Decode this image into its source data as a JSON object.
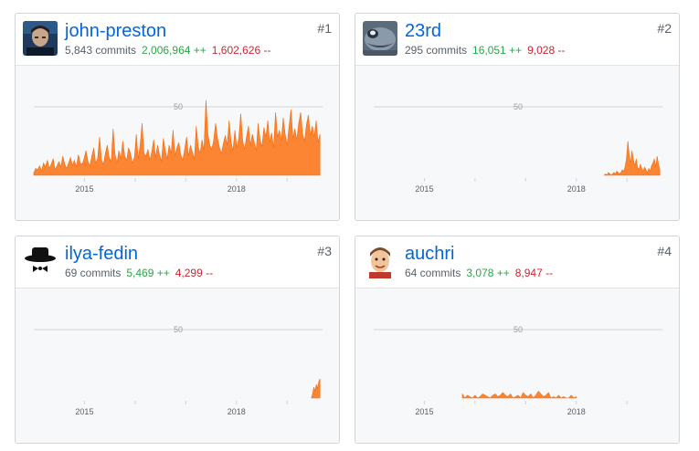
{
  "contributors": [
    {
      "rank": "#1",
      "login": "john-preston",
      "commits": "5,843 commits",
      "additions": "2,006,964 ++",
      "deletions": "1,602,626 --",
      "avatar_icon": "user-avatar-icon",
      "chart_data": {
        "type": "area",
        "ylim": [
          0,
          60
        ],
        "yticks": [
          "50"
        ],
        "xticks": [
          "2015",
          "2018"
        ],
        "x_start": 2014.0,
        "x_end": 2019.7,
        "x_tick_values": [
          2015,
          2018
        ],
        "minor_ticks": [
          2016,
          2017,
          2019
        ],
        "data_start": 2014.0,
        "data_end": 2019.65,
        "values": [
          2,
          5,
          4,
          7,
          3,
          9,
          6,
          11,
          5,
          8,
          12,
          4,
          7,
          10,
          6,
          14,
          8,
          5,
          9,
          13,
          7,
          11,
          6,
          15,
          9,
          8,
          12,
          18,
          10,
          7,
          14,
          20,
          9,
          12,
          28,
          11,
          8,
          16,
          22,
          13,
          10,
          34,
          15,
          9,
          18,
          12,
          25,
          14,
          11,
          20,
          16,
          9,
          13,
          30,
          12,
          22,
          38,
          16,
          14,
          19,
          11,
          17,
          26,
          13,
          22,
          15,
          10,
          27,
          18,
          12,
          22,
          16,
          33,
          14,
          20,
          24,
          15,
          11,
          19,
          28,
          14,
          22,
          17,
          12,
          36,
          21,
          16,
          26,
          18,
          55,
          30,
          22,
          19,
          25,
          38,
          27,
          20,
          16,
          23,
          29,
          22,
          40,
          24,
          18,
          33,
          20,
          27,
          45,
          25,
          19,
          28,
          36,
          22,
          30,
          24,
          18,
          38,
          26,
          21,
          35,
          28,
          40,
          24,
          31,
          20,
          46,
          28,
          33,
          25,
          42,
          30,
          22,
          36,
          48,
          27,
          34,
          26,
          38,
          46,
          30,
          25,
          37,
          44,
          29,
          36,
          28,
          40,
          24,
          30
        ]
      }
    },
    {
      "rank": "#2",
      "login": "23rd",
      "commits": "295 commits",
      "additions": "16,051 ++",
      "deletions": "9,028 --",
      "avatar_icon": "user-avatar-icon",
      "chart_data": {
        "type": "area",
        "ylim": [
          0,
          60
        ],
        "yticks": [
          "50"
        ],
        "xticks": [
          "2015",
          "2018"
        ],
        "x_start": 2014.0,
        "x_end": 2019.7,
        "x_tick_values": [
          2015,
          2018
        ],
        "minor_ticks": [
          2016,
          2017,
          2019
        ],
        "data_start": 2018.55,
        "data_end": 2019.65,
        "values": [
          0,
          1,
          0,
          2,
          1,
          0,
          1,
          2,
          1,
          3,
          2,
          1,
          2,
          4,
          3,
          6,
          12,
          25,
          14,
          9,
          18,
          11,
          7,
          12,
          6,
          4,
          8,
          5,
          3,
          6,
          4,
          2,
          5,
          3,
          7,
          9,
          12,
          6,
          14,
          8,
          4
        ]
      }
    },
    {
      "rank": "#3",
      "login": "ilya-fedin",
      "commits": "69 commits",
      "additions": "5,469 ++",
      "deletions": "4,299 --",
      "avatar_icon": "user-avatar-icon",
      "chart_data": {
        "type": "area",
        "ylim": [
          0,
          60
        ],
        "yticks": [
          "50"
        ],
        "xticks": [
          "2015",
          "2018"
        ],
        "x_start": 2014.0,
        "x_end": 2019.7,
        "x_tick_values": [
          2015,
          2018
        ],
        "minor_ticks": [
          2016,
          2017,
          2019
        ],
        "data_start": 2019.48,
        "data_end": 2019.65,
        "values": [
          0,
          3,
          8,
          5,
          10,
          7,
          12,
          14
        ]
      }
    },
    {
      "rank": "#4",
      "login": "auchri",
      "commits": "64 commits",
      "additions": "3,078 ++",
      "deletions": "8,947 --",
      "avatar_icon": "user-avatar-icon",
      "chart_data": {
        "type": "area",
        "ylim": [
          0,
          60
        ],
        "yticks": [
          "50"
        ],
        "xticks": [
          "2015",
          "2018"
        ],
        "x_start": 2014.0,
        "x_end": 2019.7,
        "x_tick_values": [
          2015,
          2018
        ],
        "minor_ticks": [
          2016,
          2017,
          2019
        ],
        "data_start": 2015.75,
        "data_end": 2018.0,
        "values": [
          3,
          0,
          2,
          1,
          0,
          2,
          0,
          1,
          3,
          2,
          1,
          0,
          2,
          3,
          1,
          2,
          4,
          2,
          1,
          3,
          0,
          1,
          2,
          0,
          4,
          2,
          1,
          3,
          0,
          2,
          5,
          3,
          1,
          2,
          4,
          0,
          1,
          0,
          2,
          0,
          1,
          0,
          0,
          2,
          0,
          1
        ]
      }
    }
  ],
  "colors": {
    "area": "#f66a0a",
    "area_fill": "#fb8532",
    "grid": "#d1d5da",
    "tick_text": "#959da5"
  }
}
